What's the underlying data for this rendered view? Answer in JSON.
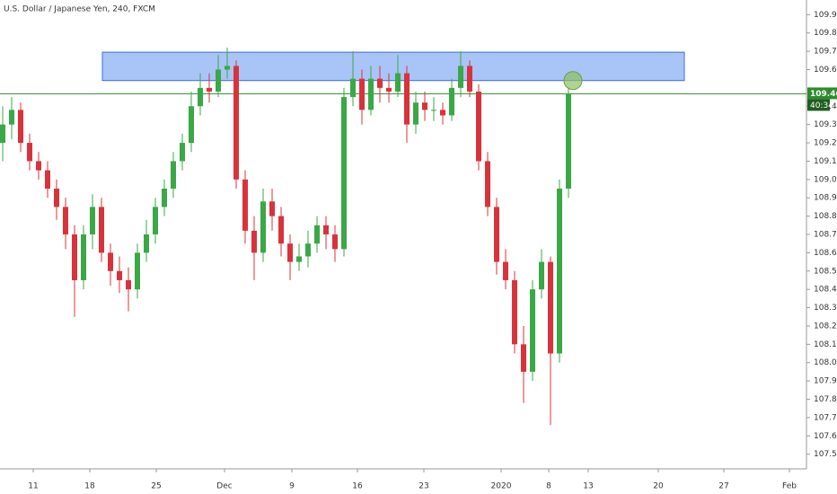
{
  "chart_data": {
    "type": "candlestick",
    "title": "U.S. Dollar / Japanese Yen, 240, FXCM",
    "up_color": "#3aa845",
    "down_color": "#d8333b",
    "open": [
      109.2,
      109.3,
      109.38,
      109.2,
      109.1,
      109.05,
      108.95,
      108.85,
      108.7,
      108.45,
      108.7,
      108.85,
      108.6,
      108.5,
      108.45,
      108.4,
      108.6,
      108.7,
      108.85,
      108.95,
      109.1,
      109.2,
      109.4,
      109.5,
      109.48,
      109.6,
      109.62,
      109.0,
      108.72,
      108.6,
      108.88,
      108.8,
      108.65,
      108.55,
      108.58,
      108.65,
      108.75,
      108.7,
      108.62,
      109.45,
      109.55,
      109.38,
      109.55,
      109.5,
      109.48,
      109.58,
      109.3,
      109.42,
      109.38,
      109.38,
      109.35,
      109.5,
      109.62,
      109.48,
      109.1,
      108.85,
      108.55,
      108.45,
      108.1,
      107.95,
      108.4,
      108.55,
      108.05,
      108.95
    ],
    "high": [
      109.4,
      109.45,
      109.42,
      109.25,
      109.15,
      109.1,
      109.0,
      108.9,
      108.75,
      108.75,
      108.92,
      108.9,
      108.65,
      108.58,
      108.52,
      108.65,
      108.78,
      108.9,
      109.0,
      109.15,
      109.25,
      109.48,
      109.58,
      109.58,
      109.68,
      109.72,
      109.65,
      109.05,
      108.8,
      108.95,
      108.95,
      108.85,
      108.7,
      108.65,
      108.72,
      108.8,
      108.8,
      108.75,
      109.5,
      109.7,
      109.6,
      109.62,
      109.62,
      109.58,
      109.68,
      109.62,
      109.48,
      109.48,
      109.45,
      109.42,
      109.55,
      109.7,
      109.65,
      109.52,
      109.15,
      108.9,
      108.62,
      108.5,
      108.2,
      108.45,
      108.62,
      108.58,
      109.0,
      109.5
    ],
    "low": [
      109.1,
      109.22,
      109.15,
      109.05,
      109.0,
      108.9,
      108.78,
      108.62,
      108.25,
      108.4,
      108.62,
      108.55,
      108.42,
      108.38,
      108.28,
      108.35,
      108.55,
      108.65,
      108.8,
      108.9,
      109.05,
      109.15,
      109.35,
      109.42,
      109.45,
      109.55,
      108.95,
      108.65,
      108.45,
      108.55,
      108.72,
      108.58,
      108.45,
      108.5,
      108.52,
      108.6,
      108.62,
      108.55,
      108.58,
      109.4,
      109.3,
      109.35,
      109.42,
      109.42,
      109.45,
      109.2,
      109.25,
      109.32,
      109.32,
      109.3,
      109.32,
      109.45,
      109.45,
      109.05,
      108.8,
      108.48,
      108.4,
      108.05,
      107.78,
      107.9,
      108.35,
      107.66,
      108.0,
      108.9
    ],
    "close": [
      109.3,
      109.38,
      109.2,
      109.1,
      109.05,
      108.95,
      108.85,
      108.7,
      108.45,
      108.7,
      108.85,
      108.6,
      108.5,
      108.45,
      108.4,
      108.6,
      108.7,
      108.85,
      108.95,
      109.1,
      109.2,
      109.4,
      109.5,
      109.48,
      109.6,
      109.62,
      109.0,
      108.72,
      108.6,
      108.88,
      108.8,
      108.65,
      108.55,
      108.58,
      108.65,
      108.75,
      108.7,
      108.62,
      109.45,
      109.55,
      109.38,
      109.55,
      109.5,
      109.48,
      109.58,
      109.3,
      109.42,
      109.38,
      109.38,
      109.35,
      109.5,
      109.62,
      109.48,
      109.1,
      108.85,
      108.55,
      108.45,
      108.1,
      107.95,
      108.4,
      108.55,
      108.05,
      108.95,
      109.47
    ],
    "xlim": [
      -0.3,
      89.5
    ],
    "xticks": [
      {
        "value": 3.4,
        "label": "11"
      },
      {
        "value": 9.7,
        "label": "18"
      },
      {
        "value": 17.1,
        "label": "25"
      },
      {
        "value": 24.7,
        "label": "Dec"
      },
      {
        "value": 32.2,
        "label": "9"
      },
      {
        "value": 39.5,
        "label": "16"
      },
      {
        "value": 46.9,
        "label": "23"
      },
      {
        "value": 55.5,
        "label": "2020"
      },
      {
        "value": 60.8,
        "label": "8"
      },
      {
        "value": 65.2,
        "label": "13"
      },
      {
        "value": 73,
        "label": "20"
      },
      {
        "value": 80.3,
        "label": "27"
      },
      {
        "value": 87.6,
        "label": "Feb"
      }
    ],
    "ylim": [
      107.42,
      109.98
    ],
    "yticks": [
      {
        "value": 107.5,
        "label": "107.500"
      },
      {
        "value": 107.6,
        "label": "107.600"
      },
      {
        "value": 107.7,
        "label": "107.700"
      },
      {
        "value": 107.8,
        "label": "107.800"
      },
      {
        "value": 107.9,
        "label": "107.900"
      },
      {
        "value": 108.0,
        "label": "108.000"
      },
      {
        "value": 108.1,
        "label": "108.100"
      },
      {
        "value": 108.2,
        "label": "108.200"
      },
      {
        "value": 108.3,
        "label": "108.300"
      },
      {
        "value": 108.4,
        "label": "108.400"
      },
      {
        "value": 108.5,
        "label": "108.500"
      },
      {
        "value": 108.6,
        "label": "108.600"
      },
      {
        "value": 108.7,
        "label": "108.700"
      },
      {
        "value": 108.8,
        "label": "108.800"
      },
      {
        "value": 108.9,
        "label": "108.900"
      },
      {
        "value": 109.0,
        "label": "109.000"
      },
      {
        "value": 109.1,
        "label": "109.100"
      },
      {
        "value": 109.2,
        "label": "109.200"
      },
      {
        "value": 109.3,
        "label": "109.300"
      },
      {
        "value": 109.4,
        "label": "109.400"
      },
      {
        "value": 109.6,
        "label": "109.600"
      },
      {
        "value": 109.7,
        "label": "109.700"
      },
      {
        "value": 109.8,
        "label": "109.800"
      },
      {
        "value": 109.9,
        "label": "109.900"
      }
    ],
    "grid": false,
    "zone": {
      "x": [
        11.1,
        75.9
      ],
      "y": [
        109.54,
        109.695
      ],
      "color": "#6f9cf0"
    },
    "marker": {
      "x": 63.5,
      "y": 109.54,
      "color": "#8dc063"
    },
    "last_price": 109.468,
    "last_price_color": "#2e8b2e",
    "countdown": "40:34"
  }
}
